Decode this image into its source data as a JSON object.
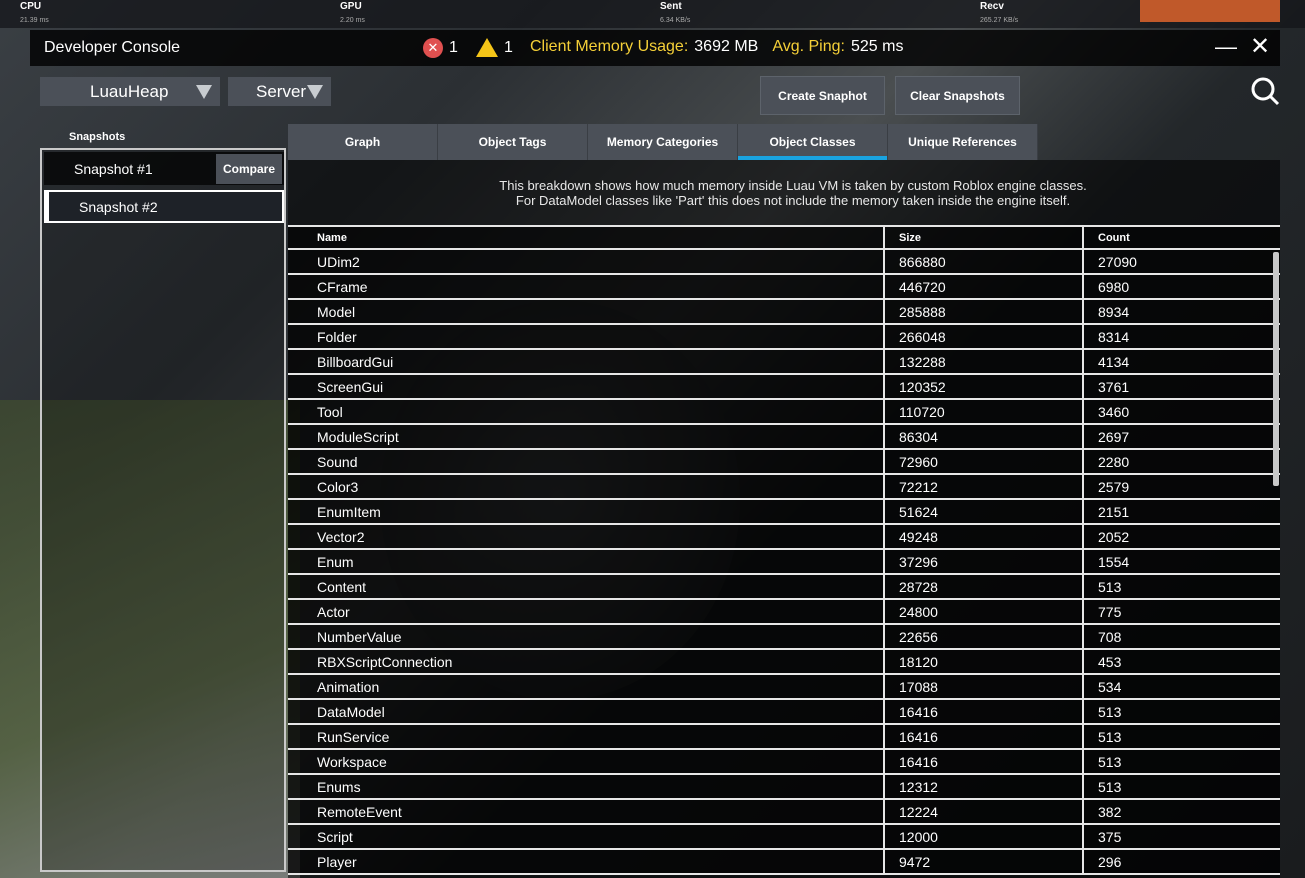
{
  "stats_bar": [
    {
      "label": "CPU",
      "value": "21.39 ms"
    },
    {
      "label": "GPU",
      "value": "2.20 ms"
    },
    {
      "label": "Sent",
      "value": "6.34 KB/s"
    },
    {
      "label": "Recv",
      "value": "265.27 KB/s"
    }
  ],
  "header": {
    "title": "Developer Console",
    "error_count": "1",
    "warning_count": "1",
    "memory_label": "Client Memory Usage:",
    "memory_value": "3692 MB",
    "ping_label": "Avg. Ping:",
    "ping_value": "525 ms"
  },
  "toolbar": {
    "view_select": "LuauHeap",
    "context_select": "Server",
    "create_snapshot": "Create Snaphot",
    "clear_snapshots": "Clear Snapshots"
  },
  "snapshots": {
    "label": "Snapshots",
    "items": [
      {
        "label": "Snapshot #1"
      },
      {
        "label": "Snapshot #2"
      }
    ],
    "compare": "Compare"
  },
  "tabs": [
    {
      "label": "Graph"
    },
    {
      "label": "Object Tags"
    },
    {
      "label": "Memory Categories"
    },
    {
      "label": "Object Classes",
      "active": true
    },
    {
      "label": "Unique References"
    }
  ],
  "description_line1": "This breakdown shows how much memory inside Luau VM is taken by custom Roblox engine classes.",
  "description_line2": "For DataModel classes like 'Part' this does not include the memory taken inside the engine itself.",
  "table": {
    "columns": [
      "Name",
      "Size",
      "Count"
    ],
    "rows": [
      [
        "UDim2",
        "866880",
        "27090"
      ],
      [
        "CFrame",
        "446720",
        "6980"
      ],
      [
        "Model",
        "285888",
        "8934"
      ],
      [
        "Folder",
        "266048",
        "8314"
      ],
      [
        "BillboardGui",
        "132288",
        "4134"
      ],
      [
        "ScreenGui",
        "120352",
        "3761"
      ],
      [
        "Tool",
        "110720",
        "3460"
      ],
      [
        "ModuleScript",
        "86304",
        "2697"
      ],
      [
        "Sound",
        "72960",
        "2280"
      ],
      [
        "Color3",
        "72212",
        "2579"
      ],
      [
        "EnumItem",
        "51624",
        "2151"
      ],
      [
        "Vector2",
        "49248",
        "2052"
      ],
      [
        "Enum",
        "37296",
        "1554"
      ],
      [
        "Content",
        "28728",
        "513"
      ],
      [
        "Actor",
        "24800",
        "775"
      ],
      [
        "NumberValue",
        "22656",
        "708"
      ],
      [
        "RBXScriptConnection",
        "18120",
        "453"
      ],
      [
        "Animation",
        "17088",
        "534"
      ],
      [
        "DataModel",
        "16416",
        "513"
      ],
      [
        "RunService",
        "16416",
        "513"
      ],
      [
        "Workspace",
        "16416",
        "513"
      ],
      [
        "Enums",
        "12312",
        "513"
      ],
      [
        "RemoteEvent",
        "12224",
        "382"
      ],
      [
        "Script",
        "12000",
        "375"
      ],
      [
        "Player",
        "9472",
        "296"
      ]
    ]
  },
  "colors": {
    "accent": "#19a3e0",
    "warning": "#f5c518",
    "error": "#e05050",
    "memory_label": "#f5d038"
  }
}
